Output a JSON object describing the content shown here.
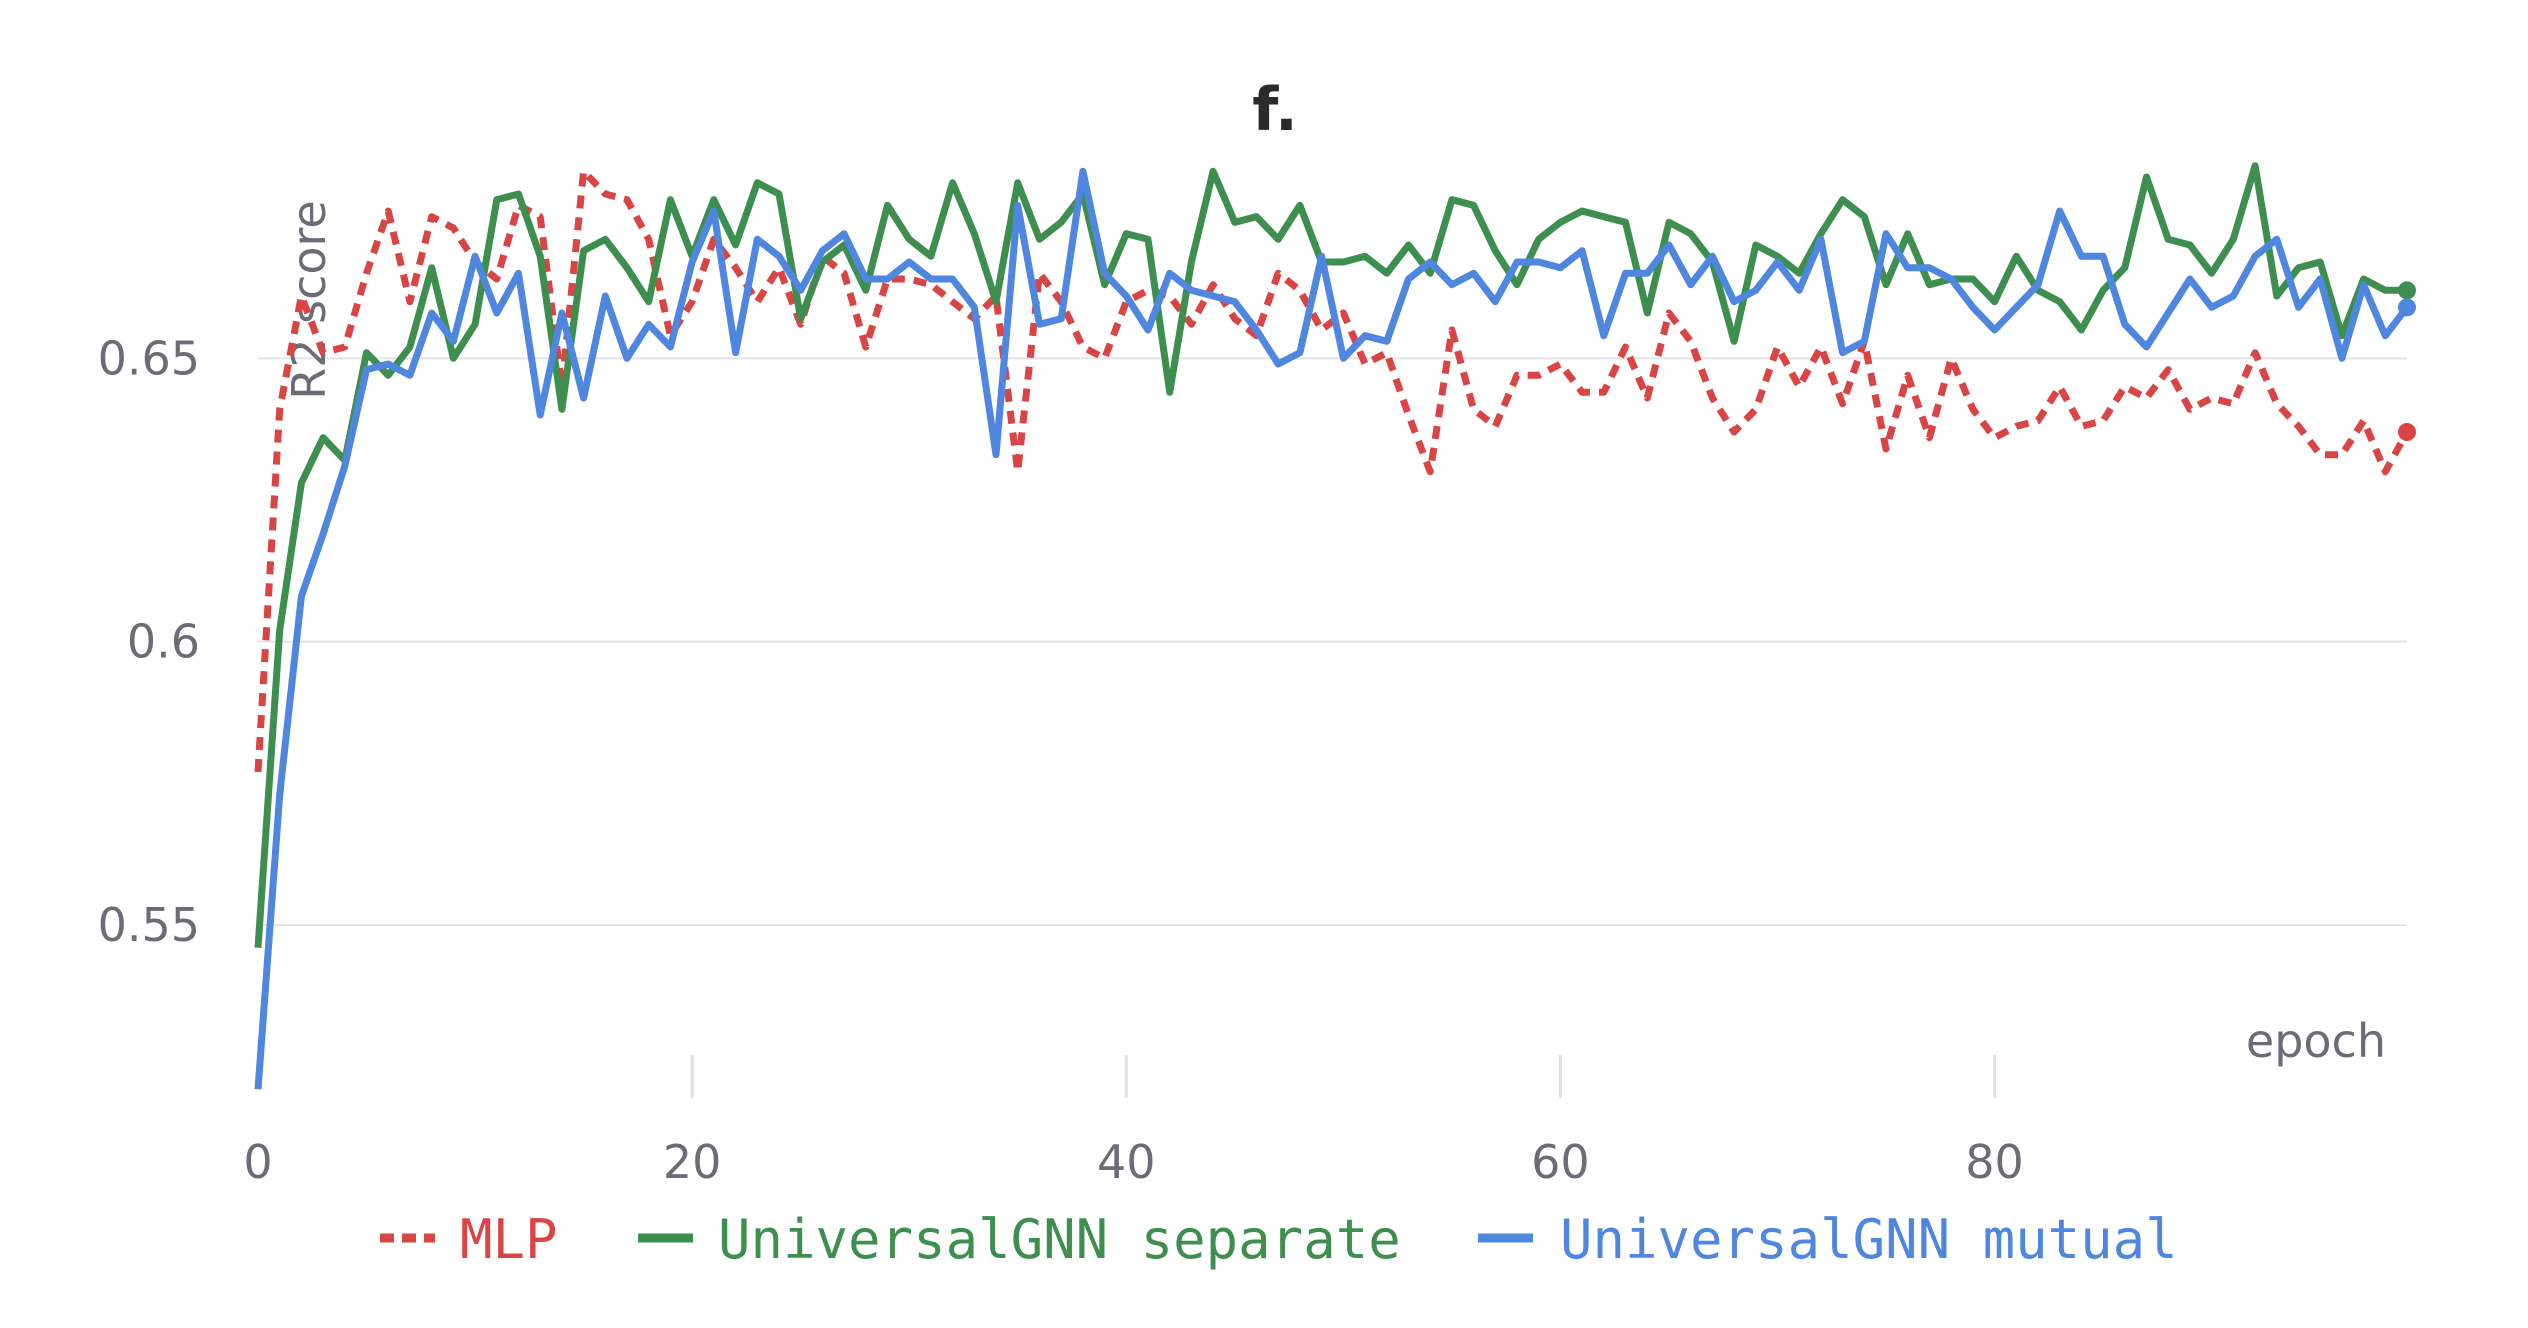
{
  "chart_data": {
    "type": "line",
    "title": "f.",
    "xlabel": "epoch",
    "ylabel": "R2 score",
    "xlim": [
      0,
      99
    ],
    "ylim": [
      0.52,
      0.685
    ],
    "xticks": [
      0,
      20,
      40,
      60,
      80
    ],
    "xtick_labels": [
      "0",
      "20",
      "40",
      "60",
      "80"
    ],
    "yticks": [
      0.55,
      0.6,
      0.65
    ],
    "ytick_labels": [
      "0.55",
      "0.6",
      "0.65"
    ],
    "grid": "horizontal",
    "legend_position": "bottom",
    "series": [
      {
        "name": "MLP",
        "color": "#d94545",
        "dash": true,
        "values": [
          0.577,
          0.641,
          0.661,
          0.651,
          0.652,
          0.665,
          0.676,
          0.66,
          0.675,
          0.673,
          0.667,
          0.664,
          0.677,
          0.675,
          0.645,
          0.683,
          0.679,
          0.678,
          0.671,
          0.654,
          0.66,
          0.671,
          0.666,
          0.66,
          0.666,
          0.656,
          0.668,
          0.665,
          0.652,
          0.664,
          0.664,
          0.663,
          0.66,
          0.657,
          0.661,
          0.63,
          0.665,
          0.66,
          0.652,
          0.65,
          0.66,
          0.662,
          0.661,
          0.656,
          0.663,
          0.657,
          0.654,
          0.665,
          0.662,
          0.655,
          0.658,
          0.649,
          0.651,
          0.64,
          0.63,
          0.655,
          0.641,
          0.638,
          0.647,
          0.647,
          0.649,
          0.644,
          0.644,
          0.652,
          0.643,
          0.658,
          0.653,
          0.643,
          0.637,
          0.641,
          0.652,
          0.645,
          0.652,
          0.642,
          0.653,
          0.634,
          0.647,
          0.636,
          0.65,
          0.641,
          0.636,
          0.638,
          0.639,
          0.645,
          0.638,
          0.639,
          0.645,
          0.643,
          0.648,
          0.641,
          0.643,
          0.642,
          0.651,
          0.642,
          0.638,
          0.633,
          0.633,
          0.639,
          0.63,
          0.637
        ]
      },
      {
        "name": "UniversalGNN separate",
        "color": "#3e8f4f",
        "dash": false,
        "values": [
          0.546,
          0.602,
          0.628,
          0.636,
          0.632,
          0.651,
          0.647,
          0.652,
          0.666,
          0.65,
          0.656,
          0.678,
          0.679,
          0.668,
          0.641,
          0.669,
          0.671,
          0.666,
          0.66,
          0.678,
          0.668,
          0.678,
          0.67,
          0.681,
          0.679,
          0.657,
          0.667,
          0.67,
          0.662,
          0.677,
          0.671,
          0.668,
          0.681,
          0.672,
          0.66,
          0.681,
          0.671,
          0.674,
          0.679,
          0.663,
          0.672,
          0.671,
          0.644,
          0.667,
          0.683,
          0.674,
          0.675,
          0.671,
          0.677,
          0.667,
          0.667,
          0.668,
          0.665,
          0.67,
          0.665,
          0.678,
          0.677,
          0.669,
          0.663,
          0.671,
          0.674,
          0.676,
          0.675,
          0.674,
          0.658,
          0.674,
          0.672,
          0.667,
          0.653,
          0.67,
          0.668,
          0.665,
          0.672,
          0.678,
          0.675,
          0.663,
          0.672,
          0.663,
          0.664,
          0.664,
          0.66,
          0.668,
          0.662,
          0.66,
          0.655,
          0.662,
          0.666,
          0.682,
          0.671,
          0.67,
          0.665,
          0.671,
          0.684,
          0.661,
          0.666,
          0.667,
          0.654,
          0.664,
          0.662,
          0.662
        ]
      },
      {
        "name": "UniversalGNN mutual",
        "color": "#4f86e0",
        "dash": false,
        "values": [
          0.521,
          0.573,
          0.608,
          0.619,
          0.631,
          0.648,
          0.649,
          0.647,
          0.658,
          0.653,
          0.668,
          0.658,
          0.665,
          0.64,
          0.658,
          0.643,
          0.661,
          0.65,
          0.656,
          0.652,
          0.667,
          0.676,
          0.651,
          0.671,
          0.668,
          0.662,
          0.669,
          0.672,
          0.664,
          0.664,
          0.667,
          0.664,
          0.664,
          0.659,
          0.633,
          0.677,
          0.656,
          0.657,
          0.683,
          0.665,
          0.661,
          0.655,
          0.665,
          0.662,
          0.661,
          0.66,
          0.655,
          0.649,
          0.651,
          0.668,
          0.65,
          0.654,
          0.653,
          0.664,
          0.667,
          0.663,
          0.665,
          0.66,
          0.667,
          0.667,
          0.666,
          0.669,
          0.654,
          0.665,
          0.665,
          0.67,
          0.663,
          0.668,
          0.66,
          0.662,
          0.667,
          0.662,
          0.671,
          0.651,
          0.653,
          0.672,
          0.666,
          0.666,
          0.664,
          0.659,
          0.655,
          0.659,
          0.663,
          0.676,
          0.668,
          0.668,
          0.656,
          0.652,
          0.658,
          0.664,
          0.659,
          0.661,
          0.668,
          0.671,
          0.659,
          0.664,
          0.65,
          0.663,
          0.654,
          0.659
        ]
      }
    ]
  }
}
